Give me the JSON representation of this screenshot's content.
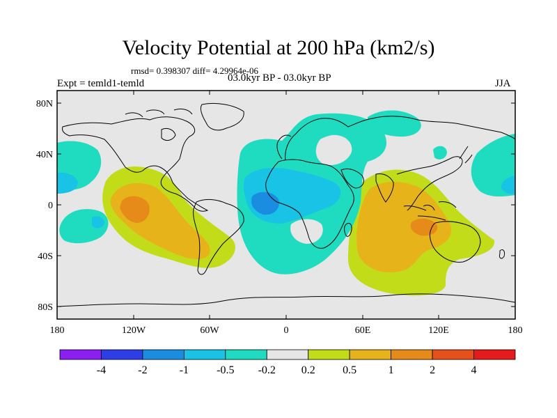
{
  "header": {
    "title": "Velocity Potential at 200 hPa (km2/s)",
    "stats": "rmsd= 0.398307  diff= 4.29964e-06",
    "expt": "Expt = temld1-temld",
    "period": "03.0kyr BP - 03.0kyr BP",
    "season": "JJA"
  },
  "axes": {
    "lat_ticks": [
      "80N",
      "40N",
      "0",
      "40S",
      "80S"
    ],
    "lon_ticks": [
      "180",
      "120W",
      "60W",
      "0",
      "60E",
      "120E",
      "180"
    ]
  },
  "colorbar": {
    "labels": [
      "-4",
      "-2",
      "-1",
      "-0.5",
      "-0.2",
      "0.2",
      "0.5",
      "1",
      "2",
      "4"
    ],
    "colors": [
      "#8b1ef0",
      "#2d3ee6",
      "#1a8de0",
      "#18c3e6",
      "#1fdcc0",
      "#e6e6e6",
      "#c3dc1a",
      "#e6b41a",
      "#e68b1a",
      "#e6501a",
      "#e61a1a"
    ]
  },
  "map": {
    "land_color": "#e6e6e6",
    "coast_color": "#000000"
  }
}
